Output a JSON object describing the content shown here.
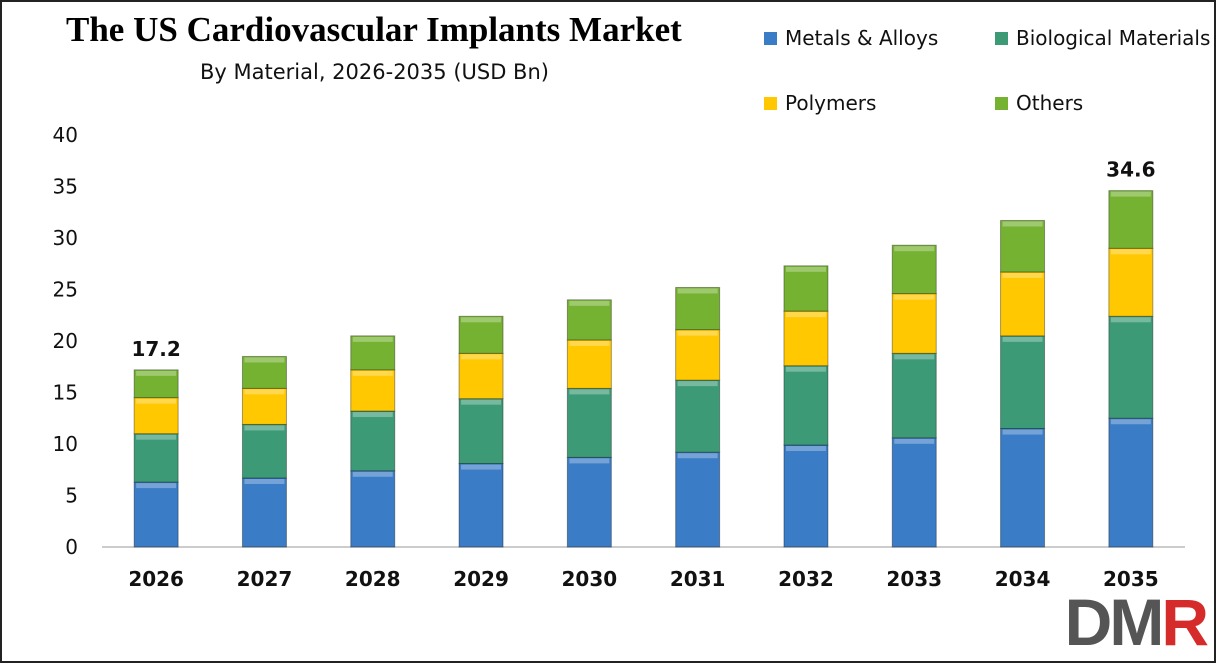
{
  "chart_data": {
    "type": "bar",
    "stacked": true,
    "title": "The US Cardiovascular Implants Market",
    "subtitle": "By Material, 2026-2035 (USD Bn)",
    "categories": [
      "2026",
      "2027",
      "2028",
      "2029",
      "2030",
      "2031",
      "2032",
      "2033",
      "2034",
      "2035"
    ],
    "series": [
      {
        "name": "Metals & Alloys",
        "color": "#3a7cc6",
        "values": [
          6.3,
          6.7,
          7.4,
          8.1,
          8.7,
          9.2,
          9.9,
          10.6,
          11.5,
          12.5
        ]
      },
      {
        "name": "Biological Materials",
        "color": "#3d9a77",
        "values": [
          4.7,
          5.2,
          5.8,
          6.3,
          6.7,
          7.0,
          7.7,
          8.2,
          9.0,
          9.9
        ]
      },
      {
        "name": "Polymers",
        "color": "#ffc800",
        "values": [
          3.5,
          3.5,
          4.0,
          4.4,
          4.7,
          4.9,
          5.3,
          5.8,
          6.2,
          6.6
        ]
      },
      {
        "name": "Others",
        "color": "#76b232",
        "values": [
          2.7,
          3.1,
          3.3,
          3.6,
          3.9,
          4.1,
          4.4,
          4.7,
          5.0,
          5.6
        ]
      }
    ],
    "data_labels": [
      {
        "category": "2026",
        "text": "17.2"
      },
      {
        "category": "2035",
        "text": "34.6"
      }
    ],
    "ylim": [
      0,
      40
    ],
    "yticks": [
      "0",
      "5",
      "10",
      "15",
      "20",
      "25",
      "30",
      "35",
      "40"
    ],
    "grid": false,
    "legend_placement": "top-right"
  },
  "logo": {
    "text": "DMR",
    "colors": [
      "#555555",
      "#d62b2b"
    ]
  }
}
